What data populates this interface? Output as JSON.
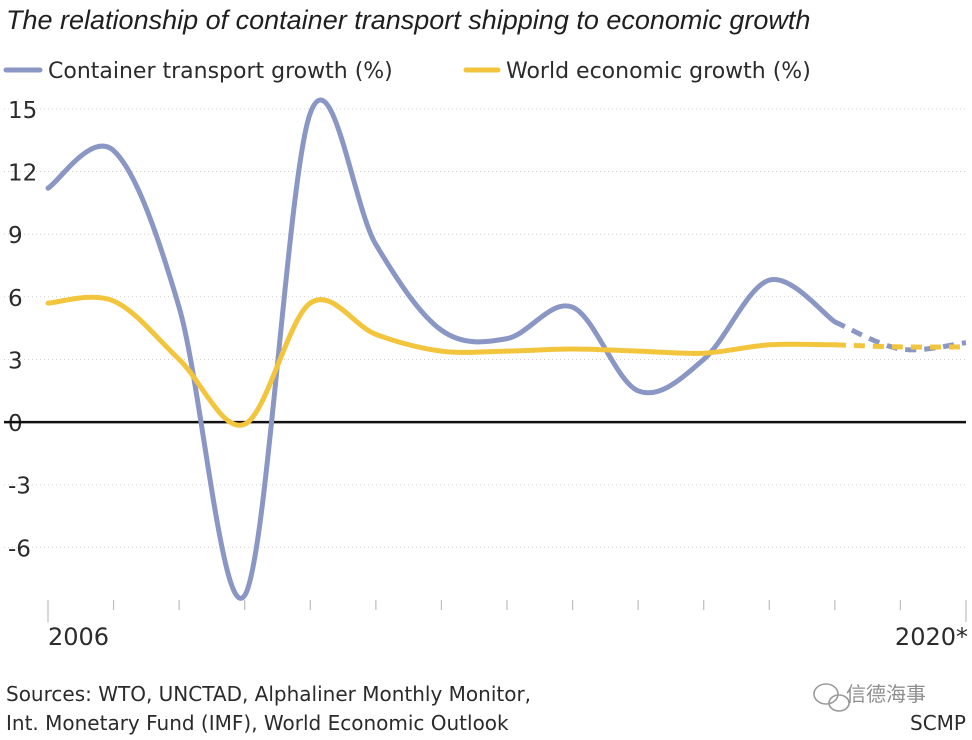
{
  "chart_data": {
    "type": "line",
    "title": "The relationship of container transport shipping to economic growth",
    "x": [
      2006,
      2007,
      2008,
      2009,
      2010,
      2011,
      2012,
      2013,
      2014,
      2015,
      2016,
      2017,
      2018,
      2019,
      2020
    ],
    "forecast_from_index": 12,
    "xtick_labels": [
      "2006",
      "2020*"
    ],
    "yticks": [
      15,
      12,
      9,
      6,
      3,
      0,
      -3,
      -6
    ],
    "ylim": [
      -9,
      16
    ],
    "series": [
      {
        "name": "Container transport growth (%)",
        "color": "#8a96c4",
        "values": [
          11.2,
          13.0,
          5.5,
          -8.3,
          14.8,
          8.5,
          4.4,
          4.0,
          5.5,
          1.5,
          3.0,
          6.8,
          4.8,
          3.5,
          3.8
        ]
      },
      {
        "name": "World economic growth (%)",
        "color": "#f2c53d",
        "values": [
          5.7,
          5.8,
          3.0,
          -0.1,
          5.7,
          4.2,
          3.4,
          3.4,
          3.5,
          3.4,
          3.3,
          3.7,
          3.7,
          3.6,
          3.6
        ]
      }
    ],
    "grid": true,
    "legend": "top-left"
  },
  "footer": {
    "sources_line1": "Sources: WTO, UNCTAD, Alphaliner Monthly Monitor,",
    "sources_line2": "Int. Monetary Fund (IMF), World Economic Outlook",
    "watermark": "信德海事",
    "credit": "SCMP"
  },
  "colors": {
    "zero_line": "#111111",
    "watermark_icon": "#9a9a9a"
  }
}
